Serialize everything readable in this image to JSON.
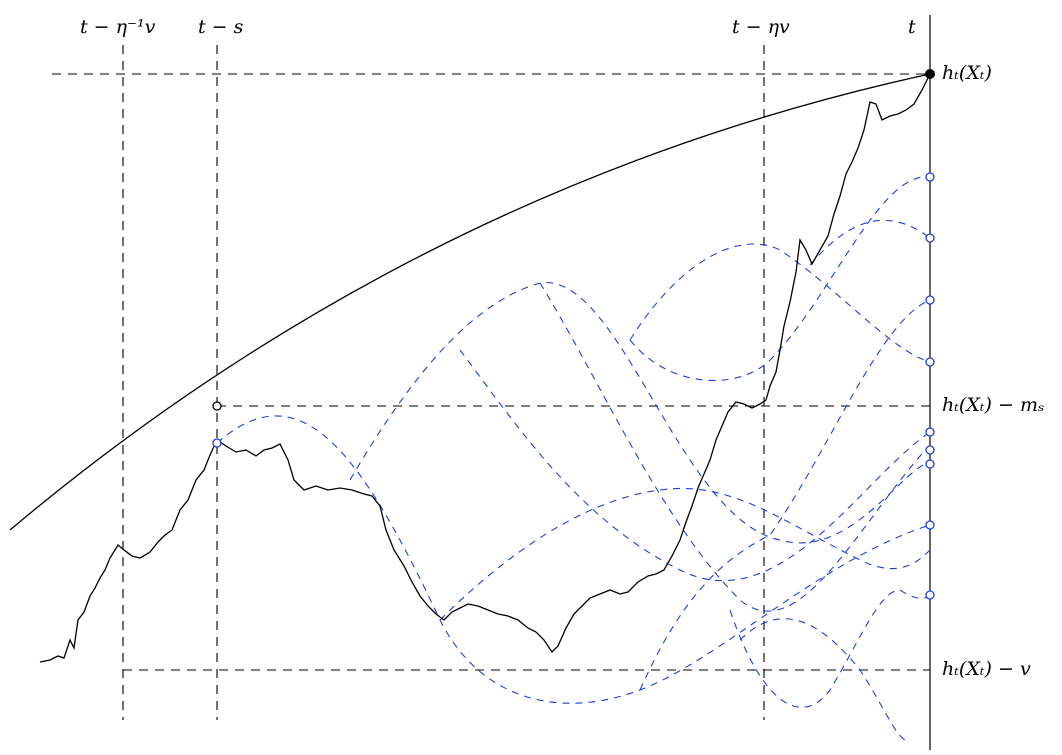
{
  "labels": {
    "t_minus_eta_inv_v": "t − η⁻¹v",
    "t_minus_s": "t − s",
    "t_minus_eta_v": "t − ηv",
    "t": "t",
    "h_t_X_t": "hₜ(Xₜ)",
    "h_t_X_t_minus_m_s": "hₜ(Xₜ) − mₛ",
    "h_t_X_t_minus_v": "hₜ(Xₜ) − v"
  },
  "colors": {
    "axis": "#000000",
    "path": "#000000",
    "ancestry_curves": "#1f3fd6"
  }
}
